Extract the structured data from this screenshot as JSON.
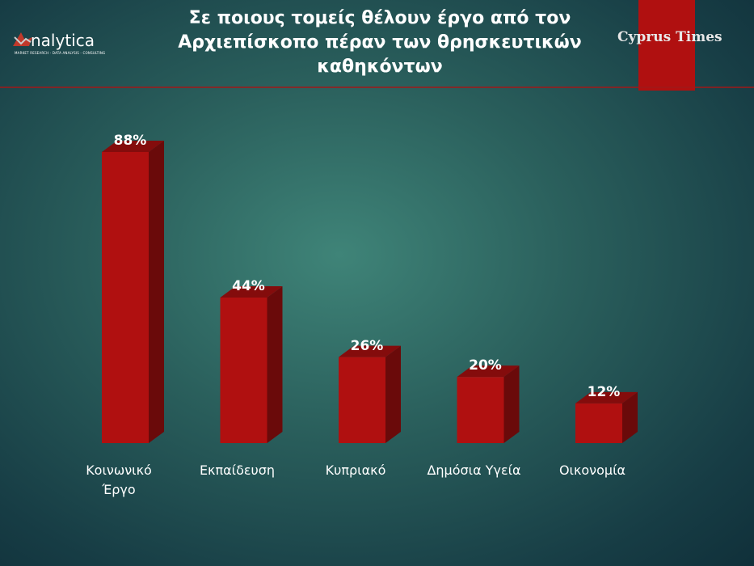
{
  "brand": {
    "logo": "nalytica",
    "tagline": "MARKET RESEARCH - DATA ANALYSIS - CONSULTING",
    "publisher": "Cyprus Times"
  },
  "chart_data": {
    "type": "bar",
    "title": "Σε ποιους τομείς θέλουν έργο από τον Αρχιεπίσκοπο πέραν των θρησκευτικών καθηκόντων",
    "categories": [
      "Κοινωνικό\nΈργο",
      "Εκπαίδευση",
      "Κυπριακό",
      "Δημόσια Υγεία",
      "Οικονομία"
    ],
    "values": [
      88,
      44,
      26,
      20,
      12
    ],
    "value_labels": [
      "88%",
      "44%",
      "26%",
      "20%",
      "12%"
    ],
    "color": "#b01010"
  }
}
